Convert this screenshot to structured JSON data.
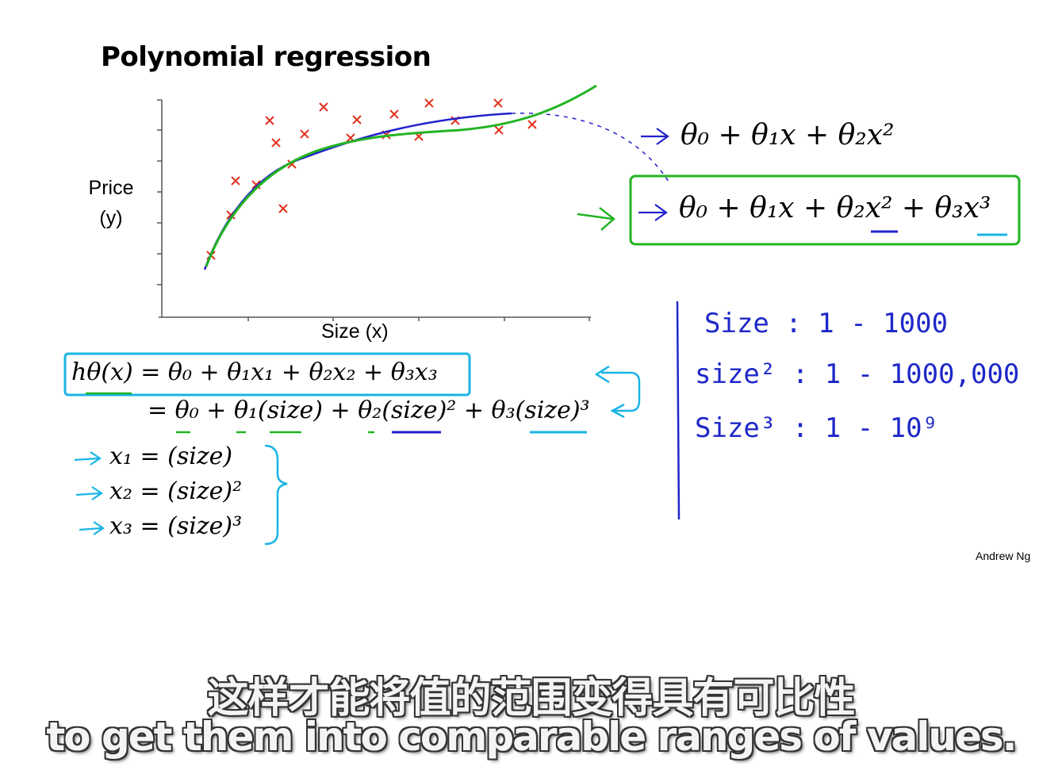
{
  "slide": {
    "title": "Polynomial regression",
    "ylabel_line1": "Price",
    "ylabel_line2": "(y)",
    "xlabel": "Size (x)",
    "credit": "Andrew Ng",
    "quadratic_model": "θ₀ + θ₁x + θ₂x²",
    "cubic_model": "θ₀ + θ₁x + θ₂x² + θ₃x³",
    "hypothesis_line1": "hθ(x) = θ₀ + θ₁x₁ + θ₂x₂ + θ₃x₃",
    "hypothesis_line2": "= θ₀ + θ₁(size) + θ₂(size)² + θ₃(size)³",
    "feature_x1": "x₁ = (size)",
    "feature_x2": "x₂ = (size)²",
    "feature_x3": "x₃ = (size)³"
  },
  "handwritten_notes": {
    "row1": "Size :   1 - 1000",
    "row2": "size² :  1 - 1000,000",
    "row3": "Size³ :  1 - 10⁹"
  },
  "subtitles": {
    "chinese": "这样才能将值的范围变得具有可比性",
    "english": "to get them into comparable ranges of values."
  },
  "colors": {
    "marker": "#e0321e",
    "blue_curve": "#2222cc",
    "green_curve": "#22b422",
    "cyan_box": "#1ab4e6",
    "green_box": "#22b422",
    "hand_blue": "#1e28c8"
  }
}
